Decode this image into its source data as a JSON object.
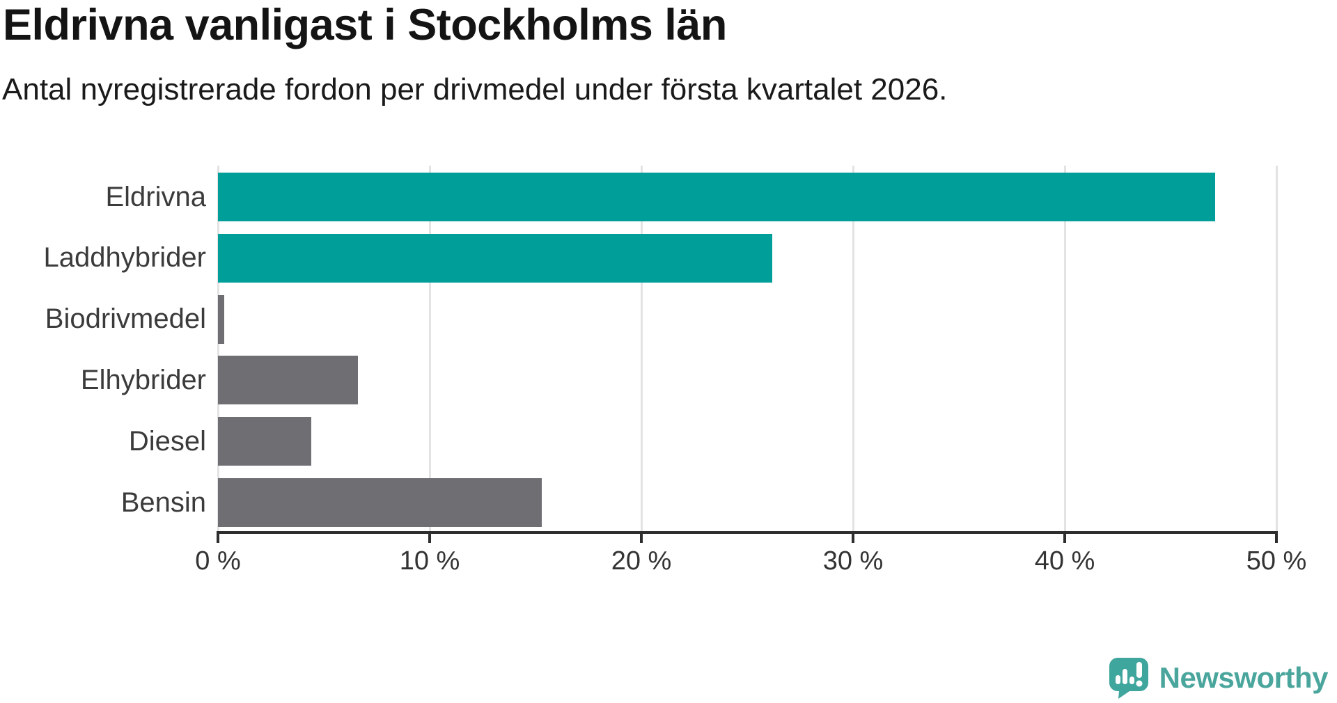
{
  "chart_data": {
    "type": "bar",
    "orientation": "horizontal",
    "title": "Eldrivna vanligast i Stockholms län",
    "subtitle": "Antal nyregistrerade fordon per drivmedel under första kvartalet 2026.",
    "categories": [
      "Eldrivna",
      "Laddhybrider",
      "Biodrivmedel",
      "Elhybrider",
      "Diesel",
      "Bensin"
    ],
    "values": [
      47.1,
      26.2,
      0.3,
      6.6,
      4.4,
      15.3
    ],
    "unit": "%",
    "bar_colors": [
      "#009e99",
      "#009e99",
      "#6e6e73",
      "#6e6e73",
      "#6e6e73",
      "#6e6e73"
    ],
    "highlight_color": "#009e99",
    "base_color": "#6e6e73",
    "xlim": [
      0,
      50
    ],
    "xticks": [
      0,
      10,
      20,
      30,
      40,
      50
    ],
    "xtick_labels": [
      "0 %",
      "10 %",
      "20 %",
      "30 %",
      "40 %",
      "50 %"
    ],
    "grid": "vertical-light",
    "legend": "none"
  },
  "footer": {
    "brand": "Newsworthy",
    "brand_color": "#4aa69d",
    "icon_color": "#3fa69d"
  }
}
